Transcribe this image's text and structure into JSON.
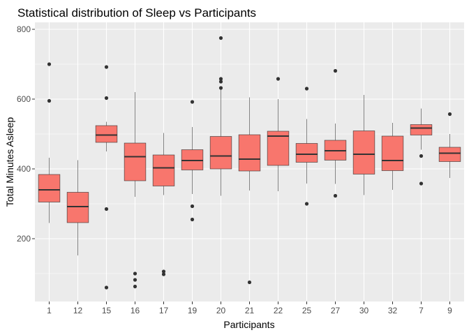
{
  "chart_data": {
    "type": "boxplot",
    "title": "Statistical distribution of Sleep vs Participants",
    "xlabel": "Participants",
    "ylabel": "Total Minutes Asleep",
    "ylim": [
      20,
      820
    ],
    "yticks": [
      200,
      400,
      600,
      800
    ],
    "grid": true,
    "colors": {
      "panel": "#EBEBEB",
      "grid": "#FFFFFF",
      "box_fill": "#F8766D",
      "line": "#333333",
      "tick": "#4D4D4D"
    },
    "categories": [
      "1",
      "12",
      "15",
      "16",
      "17",
      "19",
      "20",
      "21",
      "22",
      "25",
      "27",
      "30",
      "32",
      "7",
      "9"
    ],
    "boxes": [
      {
        "min": 245,
        "q1": 305,
        "median": 340,
        "q3": 384,
        "max": 432,
        "outliers": [
          595,
          700
        ]
      },
      {
        "min": 152,
        "q1": 246,
        "median": 292,
        "q3": 333,
        "max": 425,
        "outliers": []
      },
      {
        "min": 450,
        "q1": 476,
        "median": 497,
        "q3": 524,
        "max": 535,
        "outliers": [
          285,
          60,
          603,
          692
        ]
      },
      {
        "min": 320,
        "q1": 366,
        "median": 435,
        "q3": 474,
        "max": 620,
        "outliers": [
          100,
          82,
          63
        ]
      },
      {
        "min": 325,
        "q1": 351,
        "median": 403,
        "q3": 440,
        "max": 503,
        "outliers": [
          106,
          98
        ]
      },
      {
        "min": 328,
        "q1": 397,
        "median": 424,
        "q3": 455,
        "max": 520,
        "outliers": [
          592,
          293,
          255
        ]
      },
      {
        "min": 323,
        "q1": 400,
        "median": 437,
        "q3": 493,
        "max": 635,
        "outliers": [
          775,
          658,
          650,
          632
        ]
      },
      {
        "min": 338,
        "q1": 394,
        "median": 428,
        "q3": 498,
        "max": 605,
        "outliers": [
          75
        ]
      },
      {
        "min": 336,
        "q1": 410,
        "median": 494,
        "q3": 508,
        "max": 600,
        "outliers": [
          658
        ]
      },
      {
        "min": 358,
        "q1": 419,
        "median": 442,
        "q3": 473,
        "max": 543,
        "outliers": [
          630,
          300
        ]
      },
      {
        "min": 357,
        "q1": 425,
        "median": 452,
        "q3": 482,
        "max": 530,
        "outliers": [
          681,
          323
        ]
      },
      {
        "min": 325,
        "q1": 385,
        "median": 442,
        "q3": 509,
        "max": 612,
        "outliers": []
      },
      {
        "min": 340,
        "q1": 395,
        "median": 424,
        "q3": 494,
        "max": 532,
        "outliers": []
      },
      {
        "min": 455,
        "q1": 497,
        "median": 517,
        "q3": 527,
        "max": 573,
        "outliers": [
          437,
          358
        ]
      },
      {
        "min": 374,
        "q1": 421,
        "median": 445,
        "q3": 462,
        "max": 500,
        "outliers": [
          557
        ]
      }
    ]
  }
}
